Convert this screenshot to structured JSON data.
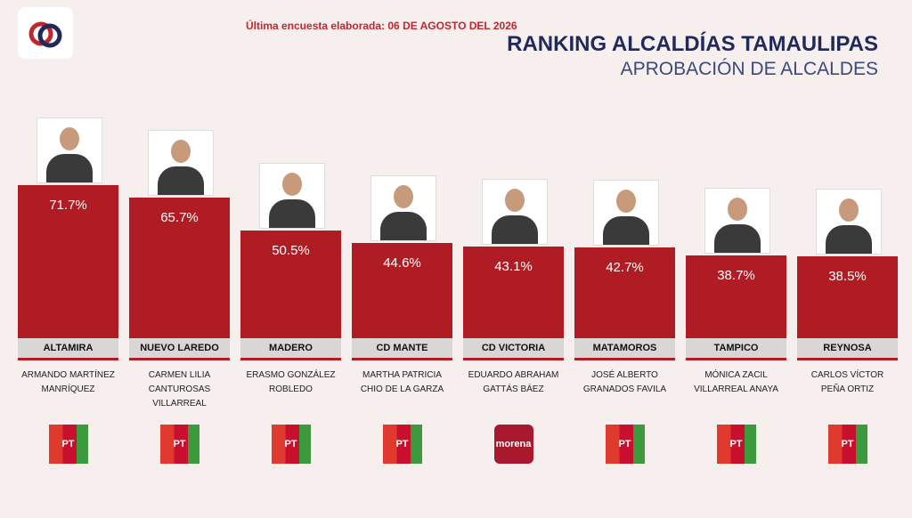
{
  "chart_data": {
    "type": "bar",
    "note_date": "Última encuesta elaborada: 06 DE AGOSTO DEL 2026",
    "title": "RANKING ALCALDÍAS TAMAULIPAS",
    "subtitle": "APROBACIÓN DE ALCALDES",
    "categories": [
      "ALTAMIRA",
      "NUEVO LAREDO",
      "MADERO",
      "CD MANTE",
      "CD VICTORIA",
      "MATAMOROS",
      "TAMPICO",
      "REYNOSA"
    ],
    "values": [
      71.7,
      65.7,
      50.5,
      44.6,
      43.1,
      42.7,
      38.7,
      38.5
    ],
    "value_labels": [
      "71.7%",
      "65.7%",
      "50.5%",
      "44.6%",
      "43.1%",
      "42.7%",
      "38.7%",
      "38.5%"
    ],
    "names": [
      "ARMANDO MARTÍNEZ MANRÍQUEZ",
      "CARMEN LILIA CANTUROSAS VILLARREAL",
      "ERASMO GONZÁLEZ ROBLEDO",
      "MARTHA PATRICIA CHIO DE LA GARZA",
      "EDUARDO ABRAHAM GATTÁS BÁEZ",
      "JOSÉ ALBERTO GRANADOS FAVILA",
      "MÓNICA ZACIL VILLARREAL ANAYA",
      "CARLOS VÍCTOR PEÑA ORTIZ"
    ],
    "parties": [
      "PT",
      "PT",
      "PT",
      "PT",
      "morena",
      "PT",
      "PT",
      "PT"
    ],
    "color": "#b01c24"
  }
}
